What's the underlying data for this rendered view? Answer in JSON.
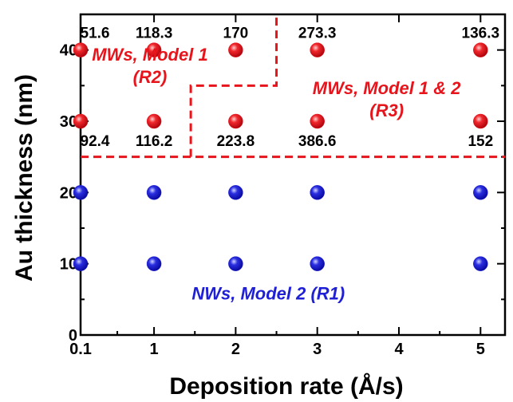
{
  "chart_data": {
    "type": "scatter",
    "xlabel": "Deposition rate (Å/s)",
    "ylabel": "Au thickness (nm)",
    "xlim": [
      0.1,
      5.3
    ],
    "ylim": [
      0,
      45
    ],
    "x_ticks": [
      0.1,
      1,
      2,
      3,
      4,
      5
    ],
    "x_tick_labels": [
      "0.1",
      "1",
      "2",
      "3",
      "4",
      "5"
    ],
    "y_ticks": [
      0,
      10,
      20,
      30,
      40
    ],
    "y_tick_labels": [
      "0",
      "10",
      "20",
      "30",
      "40"
    ],
    "grid": false,
    "legend": "none",
    "colors": {
      "red_points": "#e8141c",
      "blue_points": "#1f1fd6",
      "boundary": "#e8141c"
    },
    "series": [
      {
        "color": "red",
        "points": [
          {
            "x": 0.1,
            "y": 40,
            "label": "51.6"
          },
          {
            "x": 1,
            "y": 40,
            "label": "118.3"
          },
          {
            "x": 2,
            "y": 40,
            "label": "170"
          },
          {
            "x": 3,
            "y": 40,
            "label": "273.3"
          },
          {
            "x": 5,
            "y": 40,
            "label": "136.3"
          },
          {
            "x": 0.1,
            "y": 30,
            "label": "92.4"
          },
          {
            "x": 1,
            "y": 30,
            "label": "116.2"
          },
          {
            "x": 2,
            "y": 30,
            "label": "223.8"
          },
          {
            "x": 3,
            "y": 30,
            "label": "386.6"
          },
          {
            "x": 5,
            "y": 30,
            "label": "152"
          }
        ]
      },
      {
        "color": "blue",
        "points": [
          {
            "x": 0.1,
            "y": 20
          },
          {
            "x": 1,
            "y": 20
          },
          {
            "x": 2,
            "y": 20
          },
          {
            "x": 3,
            "y": 20
          },
          {
            "x": 5,
            "y": 20
          },
          {
            "x": 0.1,
            "y": 10
          },
          {
            "x": 1,
            "y": 10
          },
          {
            "x": 2,
            "y": 10
          },
          {
            "x": 3,
            "y": 10
          },
          {
            "x": 5,
            "y": 10
          }
        ]
      }
    ],
    "boundaries": [
      {
        "name": "horizontal",
        "points": [
          [
            0.1,
            25
          ],
          [
            5.3,
            25
          ]
        ]
      },
      {
        "name": "step",
        "points": [
          [
            1.45,
            25
          ],
          [
            1.45,
            35
          ],
          [
            2.5,
            35
          ],
          [
            2.5,
            45
          ]
        ]
      }
    ],
    "regions": [
      {
        "lines": [
          "MWs, Model 1",
          "(R2)"
        ],
        "x": 0.95,
        "y": 38.5,
        "color": "red"
      },
      {
        "lines": [
          "MWs, Model 1 & 2",
          "(R3)"
        ],
        "x": 3.85,
        "y": 33.8,
        "color": "red"
      },
      {
        "lines": [
          "NWs, Model 2  (R1)"
        ],
        "x": 2.4,
        "y": 5.0,
        "color": "blue"
      }
    ]
  }
}
